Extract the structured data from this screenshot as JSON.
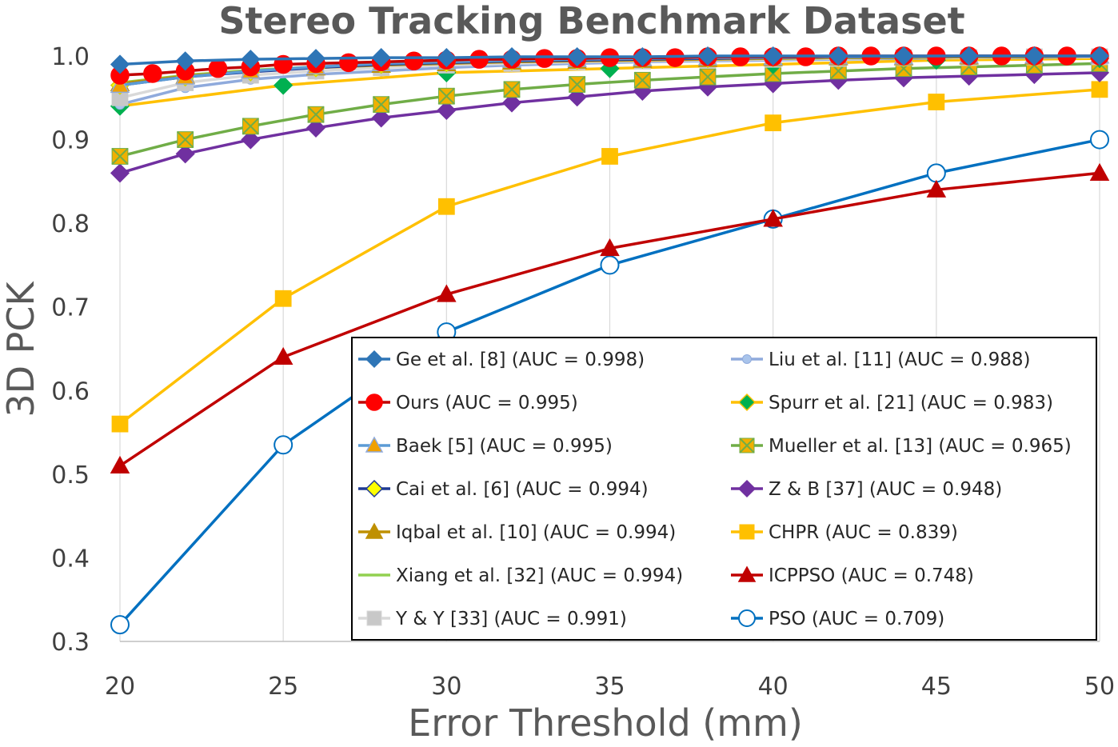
{
  "chart_data": {
    "type": "line",
    "title": "Stereo Tracking Benchmark Dataset",
    "xlabel": "Error Threshold (mm)",
    "ylabel": "3D PCK",
    "xlim": [
      20,
      50
    ],
    "ylim": [
      0.3,
      1.0
    ],
    "xticks": [
      "20",
      "25",
      "30",
      "35",
      "40",
      "45",
      "50"
    ],
    "yticks": [
      "0.3",
      "0.4",
      "0.5",
      "0.6",
      "0.7",
      "0.8",
      "0.9",
      "1.0"
    ],
    "grid": "vertical",
    "legend_position": "bottom-right",
    "series": [
      {
        "name": "Ge et al. [8] (AUC = 0.998)",
        "color": "#2e75b6",
        "marker": "diamond",
        "marker_color": "#2e75b6",
        "x": [
          20,
          22,
          24,
          26,
          28,
          30,
          32,
          34,
          36,
          38,
          40,
          42,
          44,
          46,
          48,
          50
        ],
        "y": [
          0.99,
          0.994,
          0.996,
          0.997,
          0.998,
          0.998,
          0.999,
          0.999,
          0.999,
          1.0,
          1.0,
          1.0,
          1.0,
          1.0,
          1.0,
          1.0
        ]
      },
      {
        "name": "Ours (AUC = 0.995)",
        "color": "#c00000",
        "marker": "circle",
        "marker_color": "#ff0000",
        "x": [
          20,
          21,
          22,
          23,
          24,
          25,
          26,
          27,
          28,
          29,
          30,
          31,
          32,
          33,
          34,
          35,
          36,
          37,
          38,
          39,
          40,
          41,
          42,
          43,
          44,
          45,
          46,
          47,
          48,
          49,
          50
        ],
        "y": [
          0.977,
          0.979,
          0.982,
          0.985,
          0.987,
          0.99,
          0.991,
          0.992,
          0.993,
          0.994,
          0.995,
          0.996,
          0.996,
          0.997,
          0.997,
          0.998,
          0.998,
          0.998,
          0.999,
          0.999,
          0.999,
          0.999,
          1.0,
          1.0,
          1.0,
          1.0,
          1.0,
          1.0,
          1.0,
          1.0,
          1.0
        ]
      },
      {
        "name": "Baek [5] (AUC = 0.995)",
        "color": "#5b9bd5",
        "marker": "triangle",
        "marker_color": "#f0a000",
        "x": [
          20,
          22,
          24,
          26,
          28,
          30,
          32,
          34,
          36,
          38,
          40,
          42,
          44,
          46,
          48,
          50
        ],
        "y": [
          0.965,
          0.975,
          0.982,
          0.987,
          0.991,
          0.993,
          0.995,
          0.996,
          0.997,
          0.998,
          0.998,
          0.999,
          0.999,
          1.0,
          1.0,
          1.0
        ]
      },
      {
        "name": "Cai et al. [6] (AUC = 0.994)",
        "color": "#1f3a93",
        "marker": "diamond",
        "marker_color": "#ffff00",
        "x": [
          20,
          22,
          24,
          26,
          28,
          30,
          32,
          34,
          36,
          38,
          40,
          42,
          44,
          46,
          48,
          50
        ],
        "y": [
          0.965,
          0.975,
          0.981,
          0.986,
          0.99,
          0.992,
          0.994,
          0.995,
          0.996,
          0.997,
          0.998,
          0.999,
          0.999,
          1.0,
          1.0,
          1.0
        ]
      },
      {
        "name": "Iqbal et al. [10] (AUC = 0.994)",
        "color": "#bf9000",
        "marker": "triangle",
        "marker_color": "#bf9000",
        "x": [
          20,
          22,
          24,
          26,
          28,
          30,
          32,
          34,
          36,
          38,
          40,
          42,
          44,
          46,
          48,
          50
        ],
        "y": [
          0.967,
          0.976,
          0.982,
          0.986,
          0.989,
          0.991,
          0.993,
          0.994,
          0.995,
          0.996,
          0.997,
          0.998,
          0.998,
          0.999,
          0.999,
          1.0
        ]
      },
      {
        "name": "Xiang et al. [32] (AUC = 0.994)",
        "color": "#92d050",
        "marker": "none",
        "marker_color": "#92d050",
        "x": [
          20,
          22,
          24,
          26,
          28,
          30,
          32,
          34,
          36,
          38,
          40,
          42,
          44,
          46,
          48,
          50
        ],
        "y": [
          0.968,
          0.977,
          0.983,
          0.987,
          0.99,
          0.992,
          0.993,
          0.995,
          0.996,
          0.997,
          0.997,
          0.998,
          0.998,
          0.999,
          0.999,
          1.0
        ]
      },
      {
        "name": "Y & Y [33] (AUC = 0.991)",
        "color": "#d9d9d9",
        "marker": "square",
        "marker_color": "#c8c8c8",
        "x": [
          20,
          22,
          24,
          26,
          28,
          30,
          32,
          34,
          36,
          38,
          40,
          42,
          44,
          46,
          48,
          50
        ],
        "y": [
          0.95,
          0.968,
          0.977,
          0.982,
          0.986,
          0.989,
          0.991,
          0.993,
          0.994,
          0.995,
          0.996,
          0.997,
          0.998,
          0.998,
          0.999,
          0.999
        ]
      },
      {
        "name": "Liu et al. [11] (AUC = 0.988)",
        "color": "#8faadc",
        "marker": "circle-small",
        "marker_color": "#a9c4eb",
        "x": [
          20,
          22,
          24,
          26,
          28,
          30,
          32,
          34,
          36,
          38,
          40,
          42,
          44,
          46,
          48,
          50
        ],
        "y": [
          0.942,
          0.962,
          0.972,
          0.978,
          0.982,
          0.986,
          0.989,
          0.991,
          0.993,
          0.994,
          0.995,
          0.996,
          0.997,
          0.998,
          0.998,
          0.999
        ]
      },
      {
        "name": "Spurr et al. [21] (AUC = 0.983)",
        "color": "#ffc000",
        "marker": "diamond",
        "marker_color": "#00b050",
        "x": [
          20,
          25,
          30,
          35,
          40,
          45,
          50
        ],
        "y": [
          0.94,
          0.965,
          0.98,
          0.985,
          0.99,
          0.995,
          0.997
        ]
      },
      {
        "name": "Mueller et al. [13] (AUC = 0.965)",
        "color": "#70ad47",
        "marker": "square-x",
        "marker_color": "#f0b000",
        "x": [
          20,
          22,
          24,
          26,
          28,
          30,
          32,
          34,
          36,
          38,
          40,
          42,
          44,
          46,
          48,
          50
        ],
        "y": [
          0.88,
          0.9,
          0.916,
          0.93,
          0.942,
          0.952,
          0.96,
          0.966,
          0.971,
          0.975,
          0.979,
          0.982,
          0.985,
          0.987,
          0.989,
          0.991
        ]
      },
      {
        "name": "Z & B [37] (AUC = 0.948)",
        "color": "#7030a0",
        "marker": "diamond",
        "marker_color": "#7030a0",
        "x": [
          20,
          22,
          24,
          26,
          28,
          30,
          32,
          34,
          36,
          38,
          40,
          42,
          44,
          46,
          48,
          50
        ],
        "y": [
          0.86,
          0.883,
          0.9,
          0.914,
          0.926,
          0.935,
          0.944,
          0.951,
          0.958,
          0.963,
          0.967,
          0.971,
          0.974,
          0.976,
          0.978,
          0.98
        ]
      },
      {
        "name": "CHPR (AUC = 0.839)",
        "color": "#ffc000",
        "marker": "square",
        "marker_color": "#ffc000",
        "x": [
          20,
          25,
          30,
          35,
          40,
          45,
          50
        ],
        "y": [
          0.56,
          0.71,
          0.82,
          0.88,
          0.92,
          0.945,
          0.96
        ]
      },
      {
        "name": "ICPPSO (AUC = 0.748)",
        "color": "#c00000",
        "marker": "triangle",
        "marker_color": "#c00000",
        "x": [
          20,
          25,
          30,
          35,
          40,
          45,
          50
        ],
        "y": [
          0.51,
          0.64,
          0.715,
          0.77,
          0.805,
          0.84,
          0.86
        ]
      },
      {
        "name": "PSO (AUC = 0.709)",
        "color": "#0070c0",
        "marker": "circle-open",
        "marker_color": "#0070c0",
        "x": [
          20,
          25,
          30,
          35,
          40,
          45,
          50
        ],
        "y": [
          0.32,
          0.535,
          0.67,
          0.75,
          0.805,
          0.86,
          0.9
        ]
      }
    ],
    "legend_order": [
      "Ge et al. [8] (AUC = 0.998)",
      "Liu et al. [11] (AUC = 0.988)",
      "Ours (AUC = 0.995)",
      "Spurr et al. [21] (AUC = 0.983)",
      "Baek [5] (AUC = 0.995)",
      "Mueller et al. [13] (AUC = 0.965)",
      "Cai et al. [6] (AUC = 0.994)",
      "Z & B [37] (AUC = 0.948)",
      "Iqbal et al. [10] (AUC = 0.994)",
      "CHPR (AUC = 0.839)",
      "Xiang et al. [32] (AUC = 0.994)",
      "ICPPSO (AUC = 0.748)",
      "Y & Y [33] (AUC = 0.991)",
      "PSO (AUC = 0.709)"
    ]
  }
}
